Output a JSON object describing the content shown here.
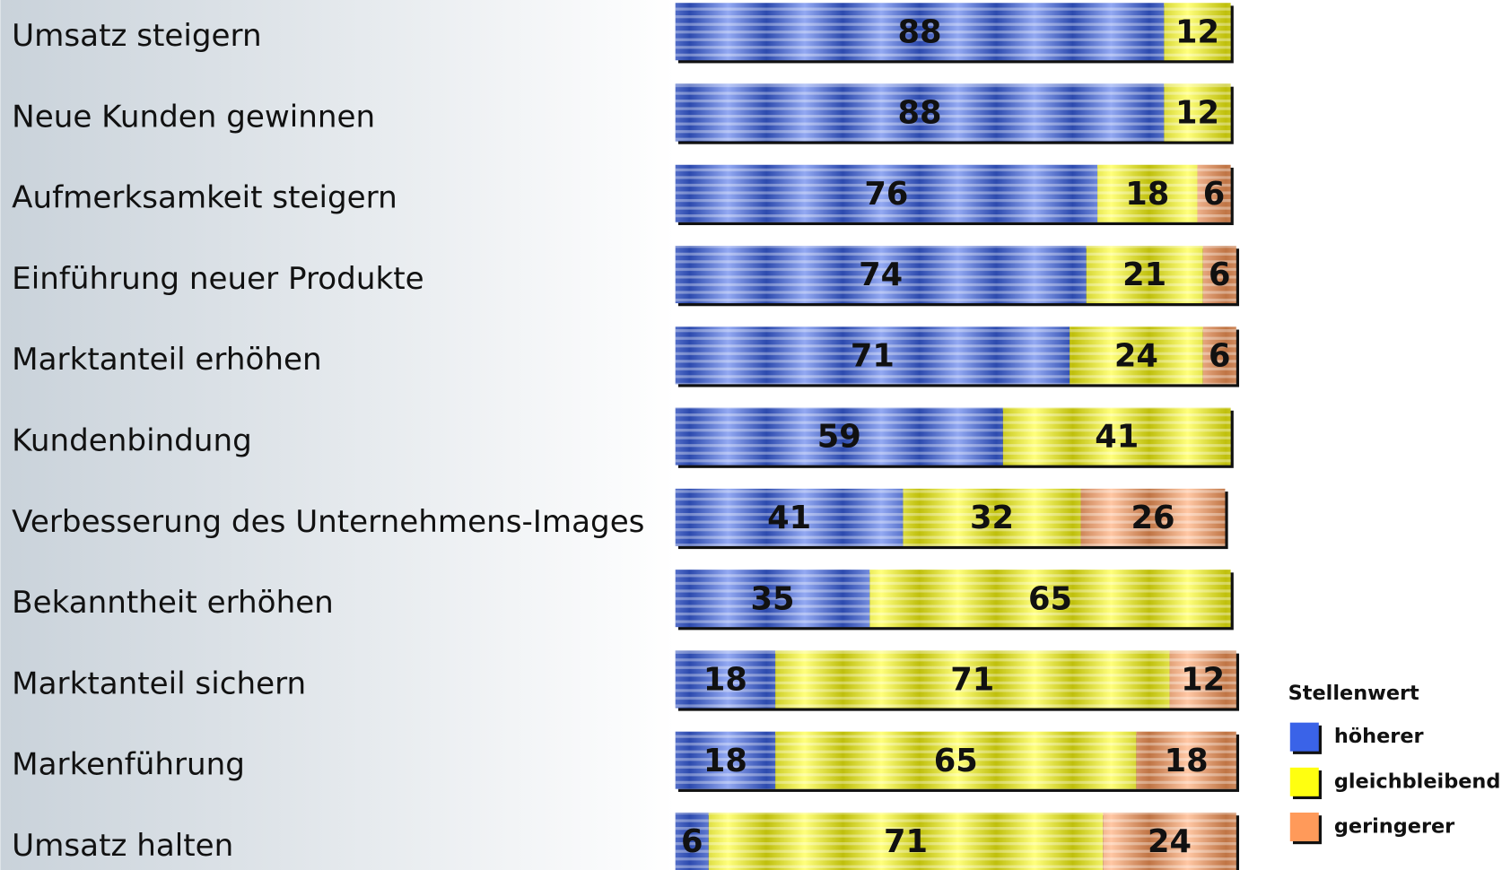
{
  "chart_data": {
    "type": "stacked-bar-horizontal",
    "categories": [
      "Umsatz steigern",
      "Neue Kunden gewinnen",
      "Aufmerksamkeit steigern",
      "Einführung neuer Produkte",
      "Marktanteil erhöhen",
      "Kundenbindung",
      "Verbesserung des Unternehmens-Images",
      "Bekanntheit erhöhen",
      "Marktanteil sichern",
      "Markenführung",
      "Umsatz halten"
    ],
    "legend_title": "Stellenwert",
    "legend": "right",
    "series": [
      {
        "name": "höherer",
        "color": "#3a63e8",
        "values": [
          88,
          88,
          76,
          74,
          71,
          59,
          41,
          35,
          18,
          18,
          6
        ]
      },
      {
        "name": "gleichbleibend",
        "color": "#ffff10",
        "values": [
          12,
          12,
          18,
          21,
          24,
          41,
          32,
          65,
          71,
          65,
          71
        ]
      },
      {
        "name": "geringerer",
        "color": "#ff9a5a",
        "values": [
          null,
          null,
          6,
          6,
          6,
          null,
          26,
          null,
          12,
          18,
          24
        ]
      }
    ]
  }
}
